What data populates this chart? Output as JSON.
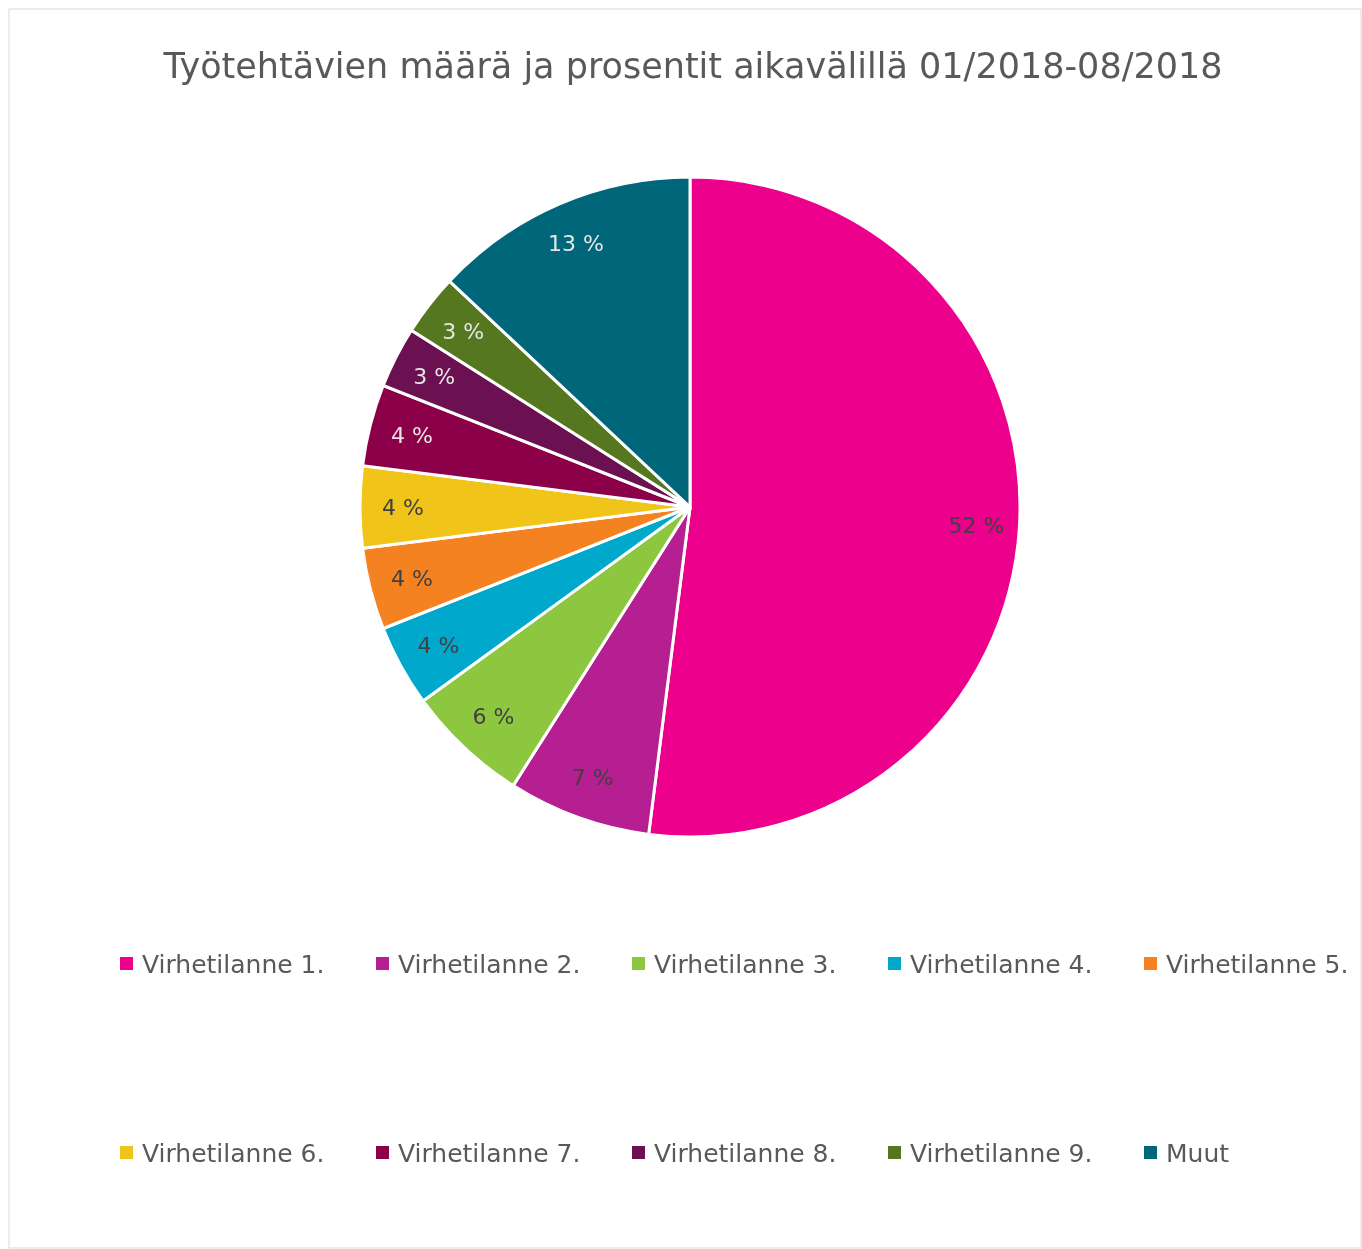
{
  "chart_data": {
    "type": "pie",
    "title": "Työtehtävien määrä ja prosentit aikavälillä 01/2018-08/2018",
    "categories": [
      "Virhetilanne 1.",
      "Virhetilanne 2.",
      "Virhetilanne 3.",
      "Virhetilanne 4.",
      "Virhetilanne 5.",
      "Virhetilanne 6.",
      "Virhetilanne 7.",
      "Virhetilanne 8.",
      "Virhetilanne 9.",
      "Muut"
    ],
    "values": [
      52,
      7,
      6,
      4,
      4,
      4,
      4,
      3,
      3,
      13
    ],
    "value_labels": [
      "52 %",
      "7 %",
      "6 %",
      "4 %",
      "4 %",
      "4 %",
      "4 %",
      "3 %",
      "3 %",
      "13 %"
    ],
    "colors": [
      "#ec008c",
      "#b51f92",
      "#8dc63f",
      "#00a8cc",
      "#f58220",
      "#f0c419",
      "#8b0048",
      "#6b1152",
      "#55771f",
      "#00667a"
    ],
    "legend": "bottom"
  }
}
